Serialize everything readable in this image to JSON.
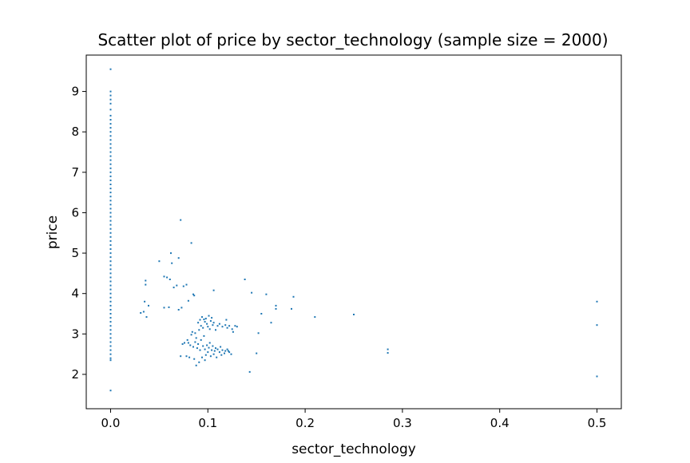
{
  "chart_data": {
    "type": "scatter",
    "title": "Scatter plot of price by sector_technology (sample size = 2000)",
    "xlabel": "sector_technology",
    "ylabel": "price",
    "xlim": [
      -0.025,
      0.525
    ],
    "ylim": [
      1.15,
      9.9
    ],
    "xticks": [
      0.0,
      0.1,
      0.2,
      0.3,
      0.4,
      0.5
    ],
    "xtick_labels": [
      "0.0",
      "0.1",
      "0.2",
      "0.3",
      "0.4",
      "0.5"
    ],
    "yticks": [
      2,
      3,
      4,
      5,
      6,
      7,
      8,
      9
    ],
    "ytick_labels": [
      "2",
      "3",
      "4",
      "5",
      "6",
      "7",
      "8",
      "9"
    ],
    "grid": false,
    "legend": "none",
    "marker_color": "#1f77b4",
    "points": [
      [
        0.0,
        9.55
      ],
      [
        0.0,
        9.0
      ],
      [
        0.0,
        8.9
      ],
      [
        0.0,
        8.8
      ],
      [
        0.0,
        8.7
      ],
      [
        0.0,
        8.55
      ],
      [
        0.0,
        8.4
      ],
      [
        0.0,
        8.3
      ],
      [
        0.0,
        8.2
      ],
      [
        0.0,
        8.1
      ],
      [
        0.0,
        8.0
      ],
      [
        0.0,
        7.9
      ],
      [
        0.0,
        7.8
      ],
      [
        0.0,
        7.7
      ],
      [
        0.0,
        7.6
      ],
      [
        0.0,
        7.5
      ],
      [
        0.0,
        7.4
      ],
      [
        0.0,
        7.3
      ],
      [
        0.0,
        7.2
      ],
      [
        0.0,
        7.1
      ],
      [
        0.0,
        7.0
      ],
      [
        0.0,
        6.9
      ],
      [
        0.0,
        6.8
      ],
      [
        0.0,
        6.7
      ],
      [
        0.0,
        6.6
      ],
      [
        0.0,
        6.5
      ],
      [
        0.0,
        6.4
      ],
      [
        0.0,
        6.3
      ],
      [
        0.0,
        6.2
      ],
      [
        0.0,
        6.1
      ],
      [
        0.0,
        6.0
      ],
      [
        0.0,
        5.9
      ],
      [
        0.0,
        5.8
      ],
      [
        0.0,
        5.7
      ],
      [
        0.0,
        5.6
      ],
      [
        0.0,
        5.5
      ],
      [
        0.0,
        5.4
      ],
      [
        0.0,
        5.3
      ],
      [
        0.0,
        5.2
      ],
      [
        0.0,
        5.1
      ],
      [
        0.0,
        5.0
      ],
      [
        0.0,
        4.9
      ],
      [
        0.0,
        4.8
      ],
      [
        0.0,
        4.7
      ],
      [
        0.0,
        4.6
      ],
      [
        0.0,
        4.5
      ],
      [
        0.0,
        4.4
      ],
      [
        0.0,
        4.3
      ],
      [
        0.0,
        4.2
      ],
      [
        0.0,
        4.1
      ],
      [
        0.0,
        4.0
      ],
      [
        0.0,
        3.9
      ],
      [
        0.0,
        3.8
      ],
      [
        0.0,
        3.7
      ],
      [
        0.0,
        3.6
      ],
      [
        0.0,
        3.5
      ],
      [
        0.0,
        3.4
      ],
      [
        0.0,
        3.3
      ],
      [
        0.0,
        3.2
      ],
      [
        0.0,
        3.1
      ],
      [
        0.0,
        3.0
      ],
      [
        0.0,
        2.9
      ],
      [
        0.0,
        2.8
      ],
      [
        0.0,
        2.7
      ],
      [
        0.0,
        2.6
      ],
      [
        0.0,
        2.5
      ],
      [
        0.0,
        2.4
      ],
      [
        0.0,
        2.35
      ],
      [
        0.0,
        1.6
      ],
      [
        0.031,
        3.52
      ],
      [
        0.034,
        3.55
      ],
      [
        0.036,
        4.32
      ],
      [
        0.036,
        4.22
      ],
      [
        0.035,
        3.8
      ],
      [
        0.037,
        3.42
      ],
      [
        0.039,
        3.7
      ],
      [
        0.05,
        4.8
      ],
      [
        0.055,
        4.42
      ],
      [
        0.058,
        4.4
      ],
      [
        0.061,
        4.35
      ],
      [
        0.055,
        3.65
      ],
      [
        0.062,
        5.0
      ],
      [
        0.063,
        4.75
      ],
      [
        0.065,
        4.15
      ],
      [
        0.068,
        4.2
      ],
      [
        0.07,
        4.88
      ],
      [
        0.072,
        5.82
      ],
      [
        0.075,
        4.18
      ],
      [
        0.078,
        4.22
      ],
      [
        0.08,
        3.82
      ],
      [
        0.083,
        5.25
      ],
      [
        0.085,
        3.98
      ],
      [
        0.086,
        3.95
      ],
      [
        0.106,
        4.08
      ],
      [
        0.07,
        3.6
      ],
      [
        0.073,
        3.65
      ],
      [
        0.06,
        3.66
      ],
      [
        0.138,
        4.35
      ],
      [
        0.145,
        4.02
      ],
      [
        0.16,
        3.98
      ],
      [
        0.17,
        3.62
      ],
      [
        0.17,
        3.7
      ],
      [
        0.188,
        3.92
      ],
      [
        0.186,
        3.62
      ],
      [
        0.165,
        3.28
      ],
      [
        0.155,
        3.5
      ],
      [
        0.152,
        3.02
      ],
      [
        0.15,
        2.52
      ],
      [
        0.143,
        2.06
      ],
      [
        0.21,
        3.42
      ],
      [
        0.25,
        3.48
      ],
      [
        0.285,
        2.62
      ],
      [
        0.285,
        2.53
      ],
      [
        0.5,
        3.8
      ],
      [
        0.5,
        3.22
      ],
      [
        0.5,
        1.95
      ],
      [
        0.084,
        3.05
      ],
      [
        0.09,
        3.28
      ],
      [
        0.091,
        3.1
      ],
      [
        0.094,
        3.42
      ],
      [
        0.096,
        3.36
      ],
      [
        0.097,
        3.3
      ],
      [
        0.099,
        3.25
      ],
      [
        0.1,
        3.18
      ],
      [
        0.102,
        3.12
      ],
      [
        0.104,
        3.4
      ],
      [
        0.105,
        3.22
      ],
      [
        0.093,
        3.2
      ],
      [
        0.095,
        3.15
      ],
      [
        0.098,
        3.38
      ],
      [
        0.101,
        3.45
      ],
      [
        0.103,
        3.32
      ],
      [
        0.106,
        3.28
      ],
      [
        0.092,
        3.35
      ],
      [
        0.108,
        3.1
      ],
      [
        0.11,
        3.2
      ],
      [
        0.112,
        3.25
      ],
      [
        0.115,
        3.18
      ],
      [
        0.118,
        3.22
      ],
      [
        0.12,
        3.15
      ],
      [
        0.122,
        3.2
      ],
      [
        0.125,
        3.12
      ],
      [
        0.128,
        3.2
      ],
      [
        0.13,
        3.18
      ],
      [
        0.126,
        3.05
      ],
      [
        0.119,
        3.35
      ],
      [
        0.08,
        2.78
      ],
      [
        0.082,
        2.72
      ],
      [
        0.085,
        2.68
      ],
      [
        0.087,
        2.8
      ],
      [
        0.088,
        2.9
      ],
      [
        0.089,
        2.65
      ],
      [
        0.09,
        2.75
      ],
      [
        0.092,
        2.6
      ],
      [
        0.093,
        2.85
      ],
      [
        0.095,
        2.7
      ],
      [
        0.096,
        2.95
      ],
      [
        0.097,
        2.62
      ],
      [
        0.099,
        2.72
      ],
      [
        0.1,
        2.55
      ],
      [
        0.101,
        2.66
      ],
      [
        0.102,
        2.78
      ],
      [
        0.104,
        2.6
      ],
      [
        0.105,
        2.7
      ],
      [
        0.107,
        2.58
      ],
      [
        0.108,
        2.65
      ],
      [
        0.11,
        2.62
      ],
      [
        0.112,
        2.55
      ],
      [
        0.113,
        2.68
      ],
      [
        0.115,
        2.6
      ],
      [
        0.117,
        2.52
      ],
      [
        0.118,
        2.58
      ],
      [
        0.12,
        2.62
      ],
      [
        0.122,
        2.55
      ],
      [
        0.124,
        2.5
      ],
      [
        0.078,
        2.45
      ],
      [
        0.081,
        2.42
      ],
      [
        0.086,
        2.38
      ],
      [
        0.088,
        2.22
      ],
      [
        0.091,
        2.3
      ],
      [
        0.094,
        2.42
      ],
      [
        0.097,
        2.35
      ],
      [
        0.103,
        2.45
      ],
      [
        0.109,
        2.42
      ],
      [
        0.114,
        2.48
      ],
      [
        0.121,
        2.58
      ],
      [
        0.083,
        2.98
      ],
      [
        0.087,
        3.02
      ],
      [
        0.079,
        2.85
      ],
      [
        0.076,
        2.78
      ],
      [
        0.074,
        2.75
      ],
      [
        0.072,
        2.45
      ],
      [
        0.098,
        2.48
      ],
      [
        0.106,
        2.5
      ]
    ]
  }
}
